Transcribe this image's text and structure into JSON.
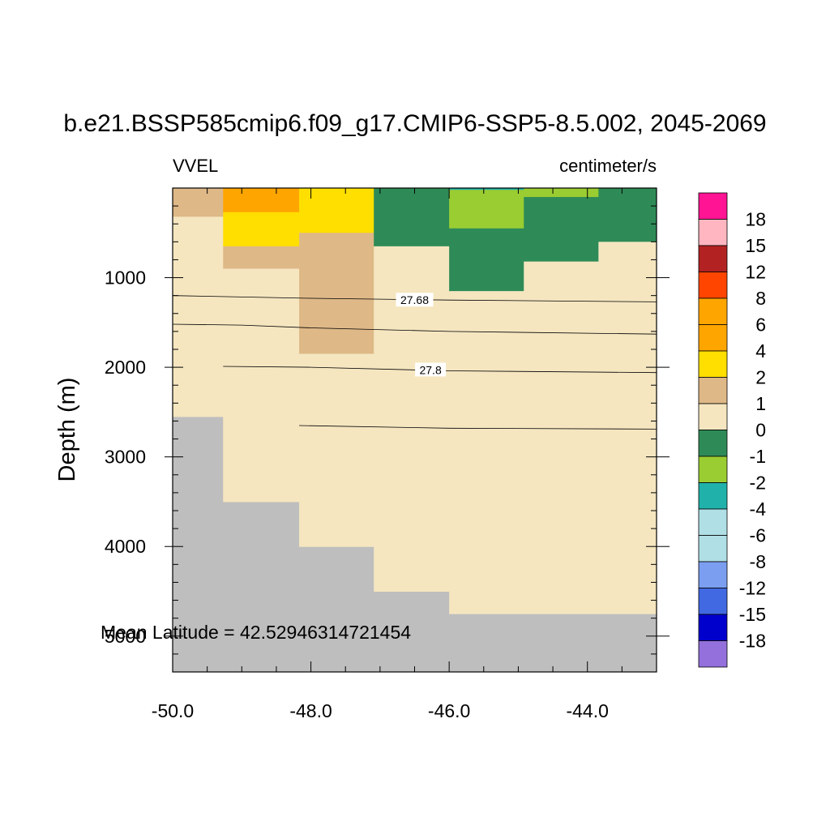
{
  "chart_data": {
    "type": "heatmap",
    "title": "b.e21.BSSP585cmip6.f09_g17.CMIP6-SSP5-8.5.002, 2045-2069",
    "left_label": "VVEL",
    "right_label": "centimeter/s",
    "ylabel": "Depth (m)",
    "xlabel": "",
    "annotation": "Mean Latitude = 42.52946314721454",
    "xlim": [
      -50.0,
      -43.0
    ],
    "ylim": [
      0,
      5400
    ],
    "y_reversed": true,
    "x_ticks": [
      -50.0,
      -48.0,
      -46.0,
      -44.0
    ],
    "x_tick_labels": [
      "-50.0",
      "-48.0",
      "-46.0",
      "-44.0"
    ],
    "y_ticks": [
      1000,
      2000,
      3000,
      4000,
      5000
    ],
    "y_tick_labels": [
      "1000",
      "2000",
      "3000",
      "4000",
      "5000"
    ],
    "missing_color": "#bebebe",
    "colorbar": {
      "colors": [
        "#9370db",
        "#0000cd",
        "#4169e1",
        "#7b9ef0",
        "#b0e0e6",
        "#b0e0e6",
        "#20b2aa",
        "#9acd32",
        "#2e8b57",
        "#f5e6c0",
        "#deb887",
        "#ffdf00",
        "#ffa500",
        "#ffa500",
        "#ff4500",
        "#b22222",
        "#ffb6c1",
        "#ff1493"
      ],
      "labels": [
        "-18",
        "-15",
        "-12",
        "-8",
        "-6",
        "-4",
        "-2",
        "-1",
        "0",
        "1",
        "2",
        "4",
        "6",
        "8",
        "12",
        "15",
        "18"
      ]
    },
    "columns": [
      {
        "x_range": [
          -50.0,
          -49.27
        ],
        "cells": [
          {
            "top": 0,
            "bottom": 320,
            "value": 1.5
          },
          {
            "top": 320,
            "bottom": 2550,
            "value": 0.5
          }
        ]
      },
      {
        "x_range": [
          -49.27,
          -48.17
        ],
        "cells": [
          {
            "top": 0,
            "bottom": 270,
            "value": 6.5
          },
          {
            "top": 270,
            "bottom": 650,
            "value": 3
          },
          {
            "top": 650,
            "bottom": 900,
            "value": 1.5
          },
          {
            "top": 900,
            "bottom": 3500,
            "value": 0.5
          }
        ]
      },
      {
        "x_range": [
          -48.17,
          -47.09
        ],
        "cells": [
          {
            "top": 0,
            "bottom": 500,
            "value": 3
          },
          {
            "top": 500,
            "bottom": 1850,
            "value": 1.5
          },
          {
            "top": 1850,
            "bottom": 4000,
            "value": 0.5
          }
        ]
      },
      {
        "x_range": [
          -47.09,
          -46.0
        ],
        "cells": [
          {
            "top": 0,
            "bottom": 650,
            "value": -0.5
          },
          {
            "top": 650,
            "bottom": 4500,
            "value": 0.5
          }
        ]
      },
      {
        "x_range": [
          -46.0,
          -44.92
        ],
        "cells": [
          {
            "top": 0,
            "bottom": 20,
            "value": -3
          },
          {
            "top": 20,
            "bottom": 450,
            "value": -1.5
          },
          {
            "top": 450,
            "bottom": 1150,
            "value": -0.5
          },
          {
            "top": 1150,
            "bottom": 4750,
            "value": 0.5
          }
        ]
      },
      {
        "x_range": [
          -44.92,
          -43.84
        ],
        "cells": [
          {
            "top": 0,
            "bottom": 100,
            "value": -1.5
          },
          {
            "top": 100,
            "bottom": 820,
            "value": -0.5
          },
          {
            "top": 820,
            "bottom": 4750,
            "value": 0.5
          }
        ]
      },
      {
        "x_range": [
          -43.84,
          -43.0
        ],
        "cells": [
          {
            "top": 0,
            "bottom": 600,
            "value": -0.5
          },
          {
            "top": 600,
            "bottom": 4750,
            "value": 0.5
          }
        ]
      }
    ],
    "contours": [
      {
        "label": "27.68",
        "label_at": [
          -46.5,
          1250
        ],
        "points": [
          [
            -50.0,
            1200
          ],
          [
            -48.0,
            1230
          ],
          [
            -46.0,
            1250
          ],
          [
            -43.0,
            1270
          ]
        ]
      },
      {
        "label": "",
        "points": [
          [
            -50.0,
            1520
          ],
          [
            -49.0,
            1530
          ],
          [
            -48.0,
            1560
          ],
          [
            -46.0,
            1600
          ],
          [
            -43.0,
            1630
          ]
        ]
      },
      {
        "label": "27.8",
        "label_at": [
          -46.27,
          2030
        ],
        "points": [
          [
            -49.27,
            1990
          ],
          [
            -48.0,
            2000
          ],
          [
            -46.0,
            2040
          ],
          [
            -43.0,
            2060
          ]
        ]
      },
      {
        "label": "",
        "points": [
          [
            -48.17,
            2650
          ],
          [
            -46.0,
            2680
          ],
          [
            -43.0,
            2690
          ]
        ]
      }
    ]
  }
}
